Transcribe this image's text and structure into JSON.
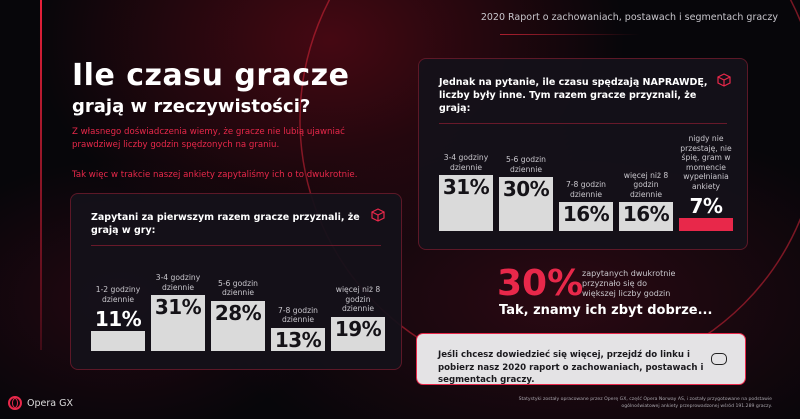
{
  "header": {
    "report_title": "2020 Raport o zachowaniach, postawach i segmentach graczy"
  },
  "title": {
    "line1": "Ile czasu gracze",
    "line2": "grają w rzeczywistości?"
  },
  "intro": {
    "p1": "Z własnego doświadczenia wiemy, że gracze nie lubią ujawniać prawdziwej liczby godzin spędzonych na graniu.",
    "p2": "Tak więc w trakcie naszej ankiety zapytaliśmy ich o to dwukrotnie."
  },
  "first_panel": {
    "question": "Zapytani za pierwszym razem gracze przyznali, że grają w gry:",
    "icon": "cube-icon",
    "bars": [
      {
        "label": "1-2 godziny dziennie",
        "value": 11,
        "text": "11%"
      },
      {
        "label": "3-4 godziny dziennie",
        "value": 31,
        "text": "31%"
      },
      {
        "label": "5-6 godzin dziennie",
        "value": 28,
        "text": "28%"
      },
      {
        "label": "7-8 godzin dziennie",
        "value": 13,
        "text": "13%"
      },
      {
        "label": "więcej niż 8 godzin dziennie",
        "value": 19,
        "text": "19%"
      }
    ]
  },
  "second_panel": {
    "question": "Jednak na pytanie, ile czasu spędzają NAPRAWDĘ, liczby były inne. Tym razem gracze przyznali, że grają:",
    "icon": "cube-icon",
    "bars": [
      {
        "label": "3-4 godziny dziennie",
        "value": 31,
        "text": "31%"
      },
      {
        "label": "5-6 godzin dziennie",
        "value": 30,
        "text": "30%"
      },
      {
        "label": "7-8 godzin dziennie",
        "value": 16,
        "text": "16%"
      },
      {
        "label": "więcej niż 8 godzin dziennie",
        "value": 16,
        "text": "16%"
      },
      {
        "label": "nigdy nie przestaję, nie śpię, gram w momencie wypełniania ankiety",
        "value": 7,
        "text": "7%",
        "color": "#e8284a"
      }
    ]
  },
  "highlight": {
    "value": "30%",
    "text": "zapytanych dwukrotnie przyznało się do większej liczby godzin",
    "slogan": "Tak, znamy ich zbyt dobrze..."
  },
  "cta": {
    "text": "Jeśli chcesz dowiedzieć się więcej, przejdź do linku i pobierz nasz 2020 raport o zachowaniach, postawach i segmentach graczy.",
    "icon": "gamepad-icon"
  },
  "footer": {
    "note": "Statystyki zostały opracowane przez Operę GX, część Opera Norway AS, i zostały przygotowane na podstawie ogólnoświatowej ankiety przeprowadzonej wśród 191.289 graczy.",
    "logo": "Opera GX"
  },
  "colors": {
    "accent": "#e8284a",
    "bar": "#dadada",
    "background": "#07060a"
  }
}
